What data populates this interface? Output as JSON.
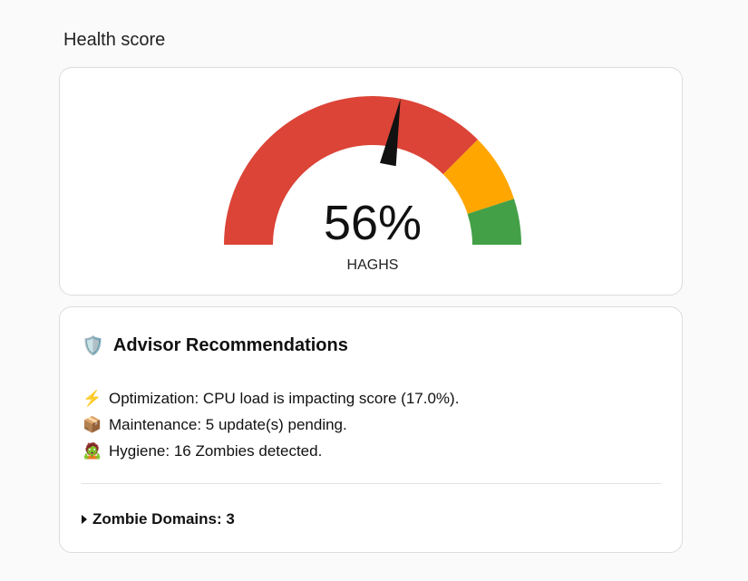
{
  "title": "Health score",
  "gauge": {
    "value": 56,
    "value_label": "56%",
    "unit": "HAGHS",
    "min": 0,
    "max": 100,
    "segments": [
      {
        "from": 0,
        "to": 75,
        "color": "#db4437"
      },
      {
        "from": 75,
        "to": 90,
        "color": "#ffa600"
      },
      {
        "from": 90,
        "to": 100,
        "color": "#43a047"
      }
    ],
    "needle_color": "#111111"
  },
  "advisor": {
    "title": "Advisor Recommendations",
    "title_icon": "🛡️",
    "items": [
      {
        "icon": "⚡",
        "text": "Optimization: CPU load is impacting score (17.0%)."
      },
      {
        "icon": "📦",
        "text": "Maintenance: 5 update(s) pending."
      },
      {
        "icon": "🧟",
        "text": "Hygiene: 16 Zombies detected."
      }
    ],
    "details_label": "Zombie Domains: 3"
  }
}
